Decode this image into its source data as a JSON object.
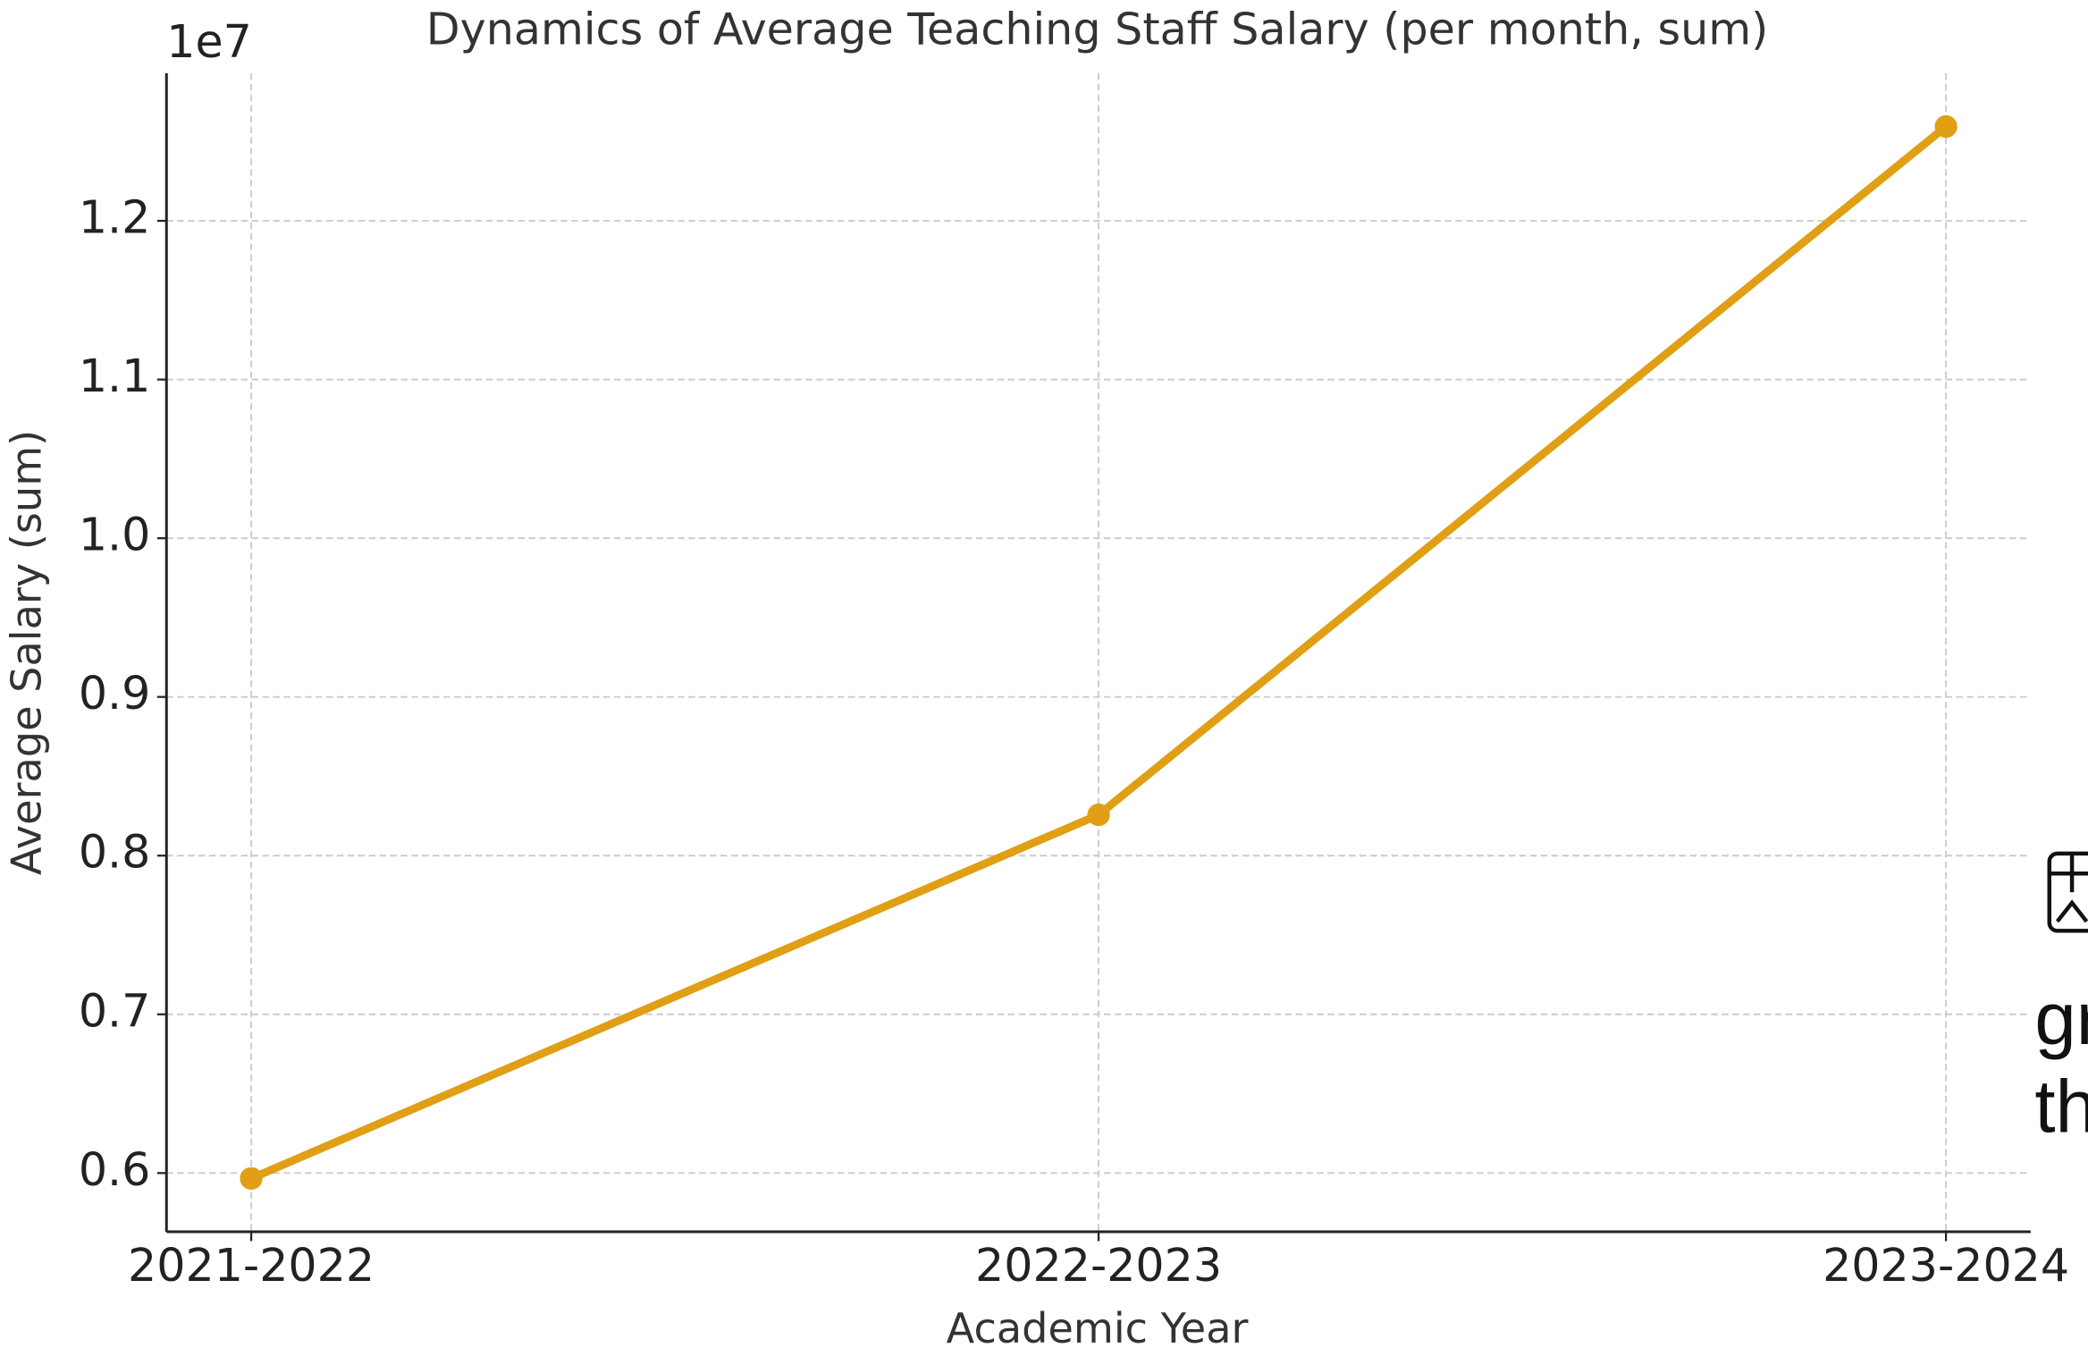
{
  "chart_data": {
    "type": "line",
    "title": "Dynamics of Average Teaching Staff Salary (per month, sum)",
    "x_label": "Academic Year",
    "y_label": "Average Salary (sum)",
    "y_offset_label": "1e7",
    "categories": [
      "2021-2022",
      "2022-2023",
      "2023-2024"
    ],
    "series": [
      {
        "name": "Average Salary",
        "color": "#e09f14",
        "values": [
          5966000,
          8257000,
          12594000
        ]
      }
    ],
    "ylim": [
      5630000,
      12930000
    ],
    "yticks": [
      {
        "value": 6000000,
        "label": "0.6"
      },
      {
        "value": 7000000,
        "label": "0.7"
      },
      {
        "value": 8000000,
        "label": "0.8"
      },
      {
        "value": 9000000,
        "label": "0.9"
      },
      {
        "value": 10000000,
        "label": "1.0"
      },
      {
        "value": 11000000,
        "label": "1.1"
      },
      {
        "value": 12000000,
        "label": "1.2"
      }
    ],
    "grid": true,
    "side_text": [
      "gr",
      "th"
    ]
  }
}
